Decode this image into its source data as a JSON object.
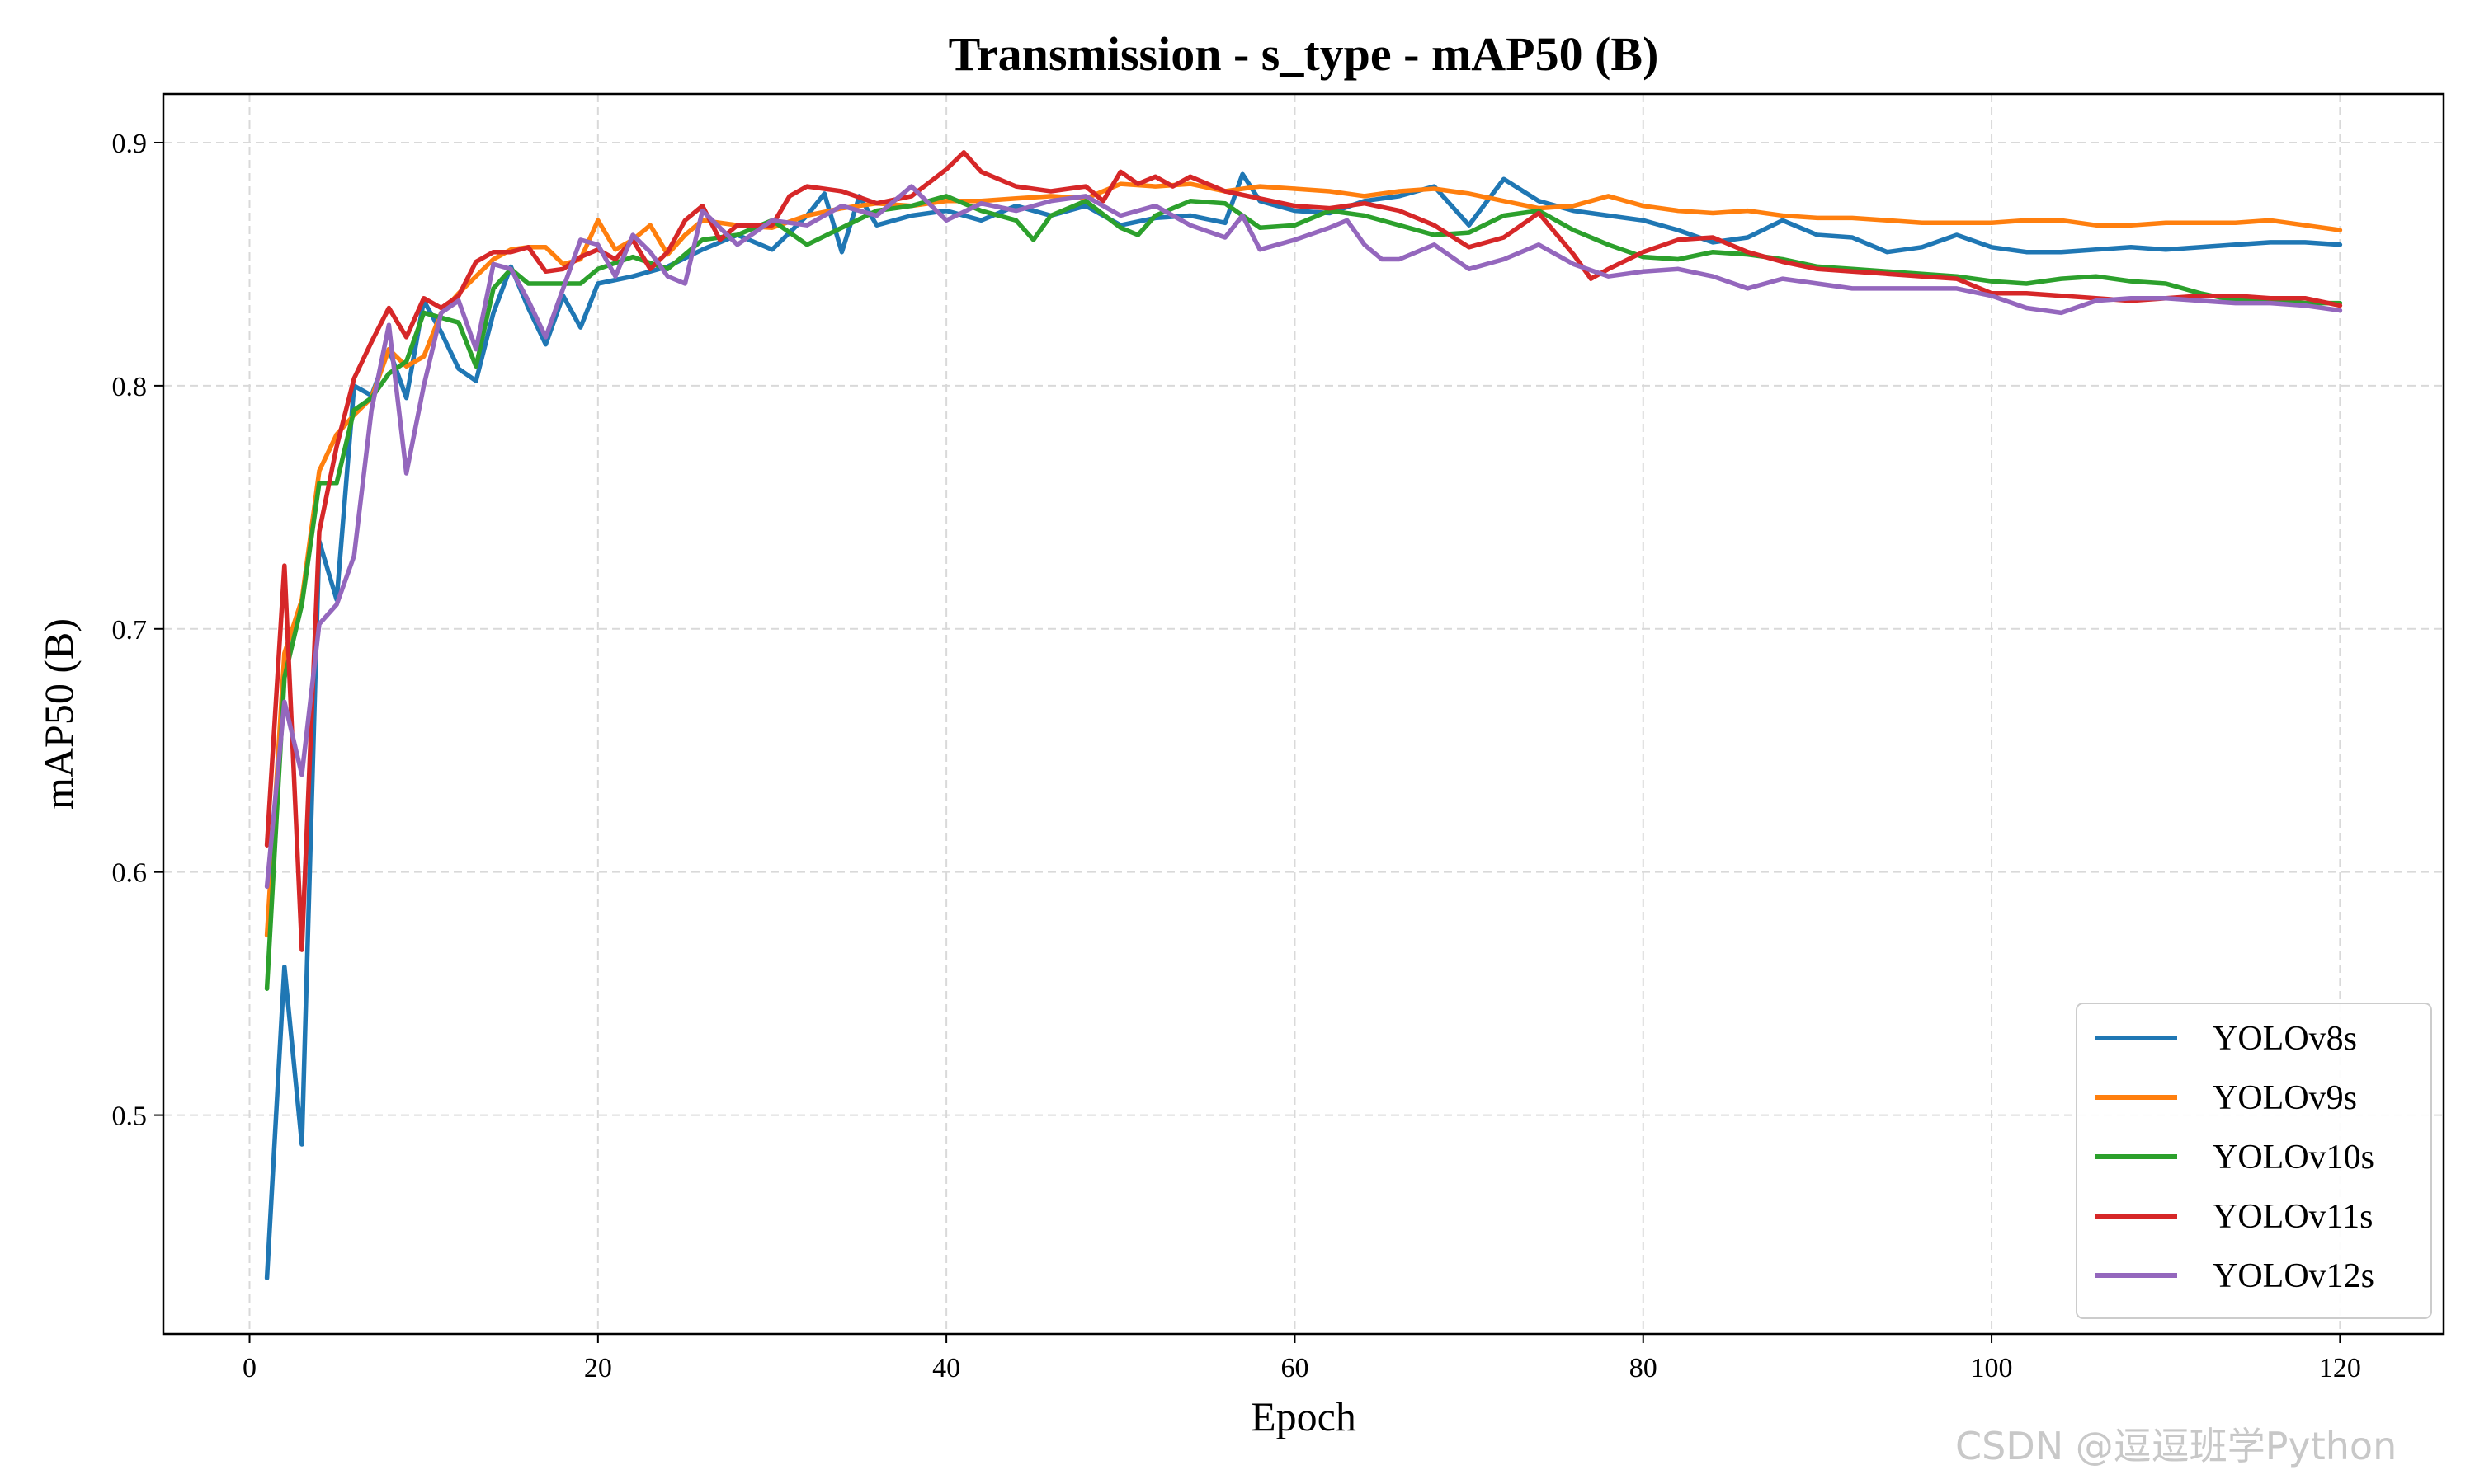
{
  "watermark": "CSDN @逗逗班学Python",
  "chart_data": {
    "type": "line",
    "title": "Transmission - s_type - mAP50 (B)",
    "xlabel": "Epoch",
    "ylabel": "mAP50 (B)",
    "xlim": [
      -4.95,
      125.95
    ],
    "ylim": [
      0.41,
      0.92
    ],
    "xticks": [
      0,
      20,
      40,
      60,
      80,
      100,
      120
    ],
    "yticks": [
      0.5,
      0.6,
      0.7,
      0.8,
      0.9
    ],
    "xtick_labels": [
      "0",
      "20",
      "40",
      "60",
      "80",
      "100",
      "120"
    ],
    "ytick_labels": [
      "0.5",
      "0.6",
      "0.7",
      "0.8",
      "0.9"
    ],
    "grid": true,
    "grid_style": "dashed",
    "legend_position": "lower-right",
    "series": [
      {
        "name": "YOLOv8s",
        "color": "#1f77b4",
        "x": [
          1,
          2,
          3,
          4,
          5,
          6,
          7,
          8,
          9,
          10,
          11,
          12,
          13,
          14,
          15,
          16,
          17,
          18,
          19,
          20,
          22,
          24,
          26,
          28,
          30,
          32,
          33,
          34,
          35,
          36,
          38,
          40,
          42,
          44,
          46,
          48,
          50,
          52,
          54,
          56,
          57,
          58,
          60,
          62,
          64,
          66,
          68,
          70,
          72,
          74,
          76,
          78,
          80,
          82,
          84,
          86,
          88,
          90,
          92,
          94,
          96,
          98,
          100,
          102,
          104,
          106,
          108,
          110,
          112,
          114,
          116,
          118,
          120
        ],
        "y": [
          0.433,
          0.561,
          0.488,
          0.736,
          0.712,
          0.8,
          0.796,
          0.815,
          0.795,
          0.835,
          0.822,
          0.807,
          0.802,
          0.83,
          0.849,
          0.832,
          0.817,
          0.837,
          0.824,
          0.842,
          0.845,
          0.849,
          0.856,
          0.862,
          0.856,
          0.87,
          0.879,
          0.855,
          0.878,
          0.866,
          0.87,
          0.872,
          0.868,
          0.874,
          0.87,
          0.874,
          0.866,
          0.869,
          0.87,
          0.867,
          0.887,
          0.876,
          0.872,
          0.871,
          0.876,
          0.878,
          0.882,
          0.866,
          0.885,
          0.876,
          0.872,
          0.87,
          0.868,
          0.864,
          0.859,
          0.861,
          0.868,
          0.862,
          0.861,
          0.855,
          0.857,
          0.862,
          0.857,
          0.855,
          0.855,
          0.856,
          0.857,
          0.856,
          0.857,
          0.858,
          0.859,
          0.859,
          0.858
        ]
      },
      {
        "name": "YOLOv9s",
        "color": "#ff7f0e",
        "x": [
          1,
          2,
          3,
          4,
          5,
          6,
          7,
          8,
          9,
          10,
          11,
          12,
          13,
          14,
          15,
          16,
          17,
          18,
          19,
          20,
          21,
          22,
          23,
          24,
          25,
          26,
          28,
          30,
          32,
          34,
          36,
          38,
          40,
          42,
          44,
          46,
          48,
          50,
          52,
          54,
          56,
          58,
          60,
          62,
          64,
          66,
          68,
          70,
          72,
          74,
          76,
          78,
          80,
          82,
          84,
          86,
          88,
          90,
          92,
          94,
          96,
          98,
          100,
          102,
          104,
          106,
          108,
          110,
          112,
          114,
          116,
          118,
          120
        ],
        "y": [
          0.574,
          0.69,
          0.712,
          0.765,
          0.78,
          0.788,
          0.795,
          0.815,
          0.808,
          0.812,
          0.83,
          0.838,
          0.845,
          0.852,
          0.856,
          0.857,
          0.857,
          0.85,
          0.852,
          0.868,
          0.856,
          0.86,
          0.866,
          0.854,
          0.862,
          0.868,
          0.866,
          0.865,
          0.87,
          0.873,
          0.875,
          0.874,
          0.876,
          0.876,
          0.877,
          0.878,
          0.877,
          0.883,
          0.882,
          0.883,
          0.88,
          0.882,
          0.881,
          0.88,
          0.878,
          0.88,
          0.881,
          0.879,
          0.876,
          0.873,
          0.874,
          0.878,
          0.874,
          0.872,
          0.871,
          0.872,
          0.87,
          0.869,
          0.869,
          0.868,
          0.867,
          0.867,
          0.867,
          0.868,
          0.868,
          0.866,
          0.866,
          0.867,
          0.867,
          0.867,
          0.868,
          0.866,
          0.864
        ]
      },
      {
        "name": "YOLOv10s",
        "color": "#2ca02c",
        "x": [
          1,
          2,
          3,
          4,
          5,
          6,
          7,
          8,
          9,
          10,
          11,
          12,
          13,
          14,
          15,
          16,
          17,
          18,
          19,
          20,
          22,
          24,
          26,
          28,
          30,
          32,
          34,
          36,
          38,
          40,
          42,
          44,
          45,
          46,
          48,
          50,
          51,
          52,
          54,
          56,
          58,
          60,
          62,
          64,
          66,
          68,
          70,
          72,
          74,
          76,
          78,
          80,
          82,
          84,
          86,
          88,
          90,
          92,
          94,
          96,
          98,
          100,
          102,
          104,
          106,
          108,
          110,
          112,
          114,
          116,
          118,
          120
        ],
        "y": [
          0.552,
          0.68,
          0.71,
          0.76,
          0.76,
          0.79,
          0.795,
          0.805,
          0.81,
          0.83,
          0.828,
          0.826,
          0.808,
          0.84,
          0.848,
          0.842,
          0.842,
          0.842,
          0.842,
          0.848,
          0.853,
          0.848,
          0.86,
          0.862,
          0.868,
          0.858,
          0.865,
          0.872,
          0.874,
          0.878,
          0.872,
          0.868,
          0.86,
          0.87,
          0.876,
          0.865,
          0.862,
          0.87,
          0.876,
          0.875,
          0.865,
          0.866,
          0.872,
          0.87,
          0.866,
          0.862,
          0.863,
          0.87,
          0.872,
          0.864,
          0.858,
          0.853,
          0.852,
          0.855,
          0.854,
          0.852,
          0.849,
          0.848,
          0.847,
          0.846,
          0.845,
          0.843,
          0.842,
          0.844,
          0.845,
          0.843,
          0.842,
          0.838,
          0.835,
          0.835,
          0.834,
          0.834
        ]
      },
      {
        "name": "YOLOv11s",
        "color": "#d62728",
        "x": [
          1,
          2,
          3,
          4,
          5,
          6,
          7,
          8,
          9,
          10,
          11,
          12,
          13,
          14,
          15,
          16,
          17,
          18,
          19,
          20,
          21,
          22,
          23,
          24,
          25,
          26,
          27,
          28,
          30,
          31,
          32,
          34,
          36,
          38,
          40,
          41,
          42,
          44,
          46,
          48,
          49,
          50,
          51,
          52,
          53,
          54,
          56,
          58,
          60,
          62,
          64,
          66,
          68,
          70,
          72,
          74,
          76,
          77,
          78,
          80,
          82,
          84,
          86,
          88,
          90,
          92,
          94,
          96,
          98,
          100,
          102,
          104,
          106,
          108,
          110,
          112,
          114,
          116,
          118,
          120
        ],
        "y": [
          0.611,
          0.726,
          0.568,
          0.74,
          0.775,
          0.803,
          0.818,
          0.832,
          0.82,
          0.836,
          0.832,
          0.837,
          0.851,
          0.855,
          0.855,
          0.857,
          0.847,
          0.848,
          0.853,
          0.856,
          0.852,
          0.86,
          0.848,
          0.855,
          0.868,
          0.874,
          0.86,
          0.866,
          0.866,
          0.878,
          0.882,
          0.88,
          0.875,
          0.878,
          0.889,
          0.896,
          0.888,
          0.882,
          0.88,
          0.882,
          0.876,
          0.888,
          0.883,
          0.886,
          0.882,
          0.886,
          0.88,
          0.877,
          0.874,
          0.873,
          0.875,
          0.872,
          0.866,
          0.857,
          0.861,
          0.871,
          0.854,
          0.844,
          0.848,
          0.855,
          0.86,
          0.861,
          0.855,
          0.851,
          0.848,
          0.847,
          0.846,
          0.845,
          0.844,
          0.838,
          0.838,
          0.837,
          0.836,
          0.835,
          0.836,
          0.837,
          0.837,
          0.836,
          0.836,
          0.833
        ]
      },
      {
        "name": "YOLOv12s",
        "color": "#9467bd",
        "x": [
          1,
          2,
          3,
          4,
          5,
          6,
          7,
          8,
          9,
          10,
          11,
          12,
          13,
          14,
          15,
          16,
          17,
          18,
          19,
          20,
          21,
          22,
          23,
          24,
          25,
          26,
          28,
          30,
          32,
          34,
          36,
          38,
          40,
          42,
          44,
          46,
          48,
          50,
          52,
          54,
          56,
          57,
          58,
          60,
          62,
          63,
          64,
          65,
          66,
          68,
          70,
          72,
          74,
          76,
          78,
          80,
          82,
          84,
          86,
          88,
          90,
          92,
          94,
          96,
          98,
          100,
          102,
          104,
          106,
          108,
          110,
          112,
          114,
          116,
          118,
          120
        ],
        "y": [
          0.594,
          0.67,
          0.64,
          0.702,
          0.71,
          0.73,
          0.79,
          0.825,
          0.764,
          0.8,
          0.83,
          0.835,
          0.815,
          0.85,
          0.848,
          0.835,
          0.82,
          0.84,
          0.86,
          0.858,
          0.845,
          0.862,
          0.855,
          0.845,
          0.842,
          0.872,
          0.858,
          0.868,
          0.866,
          0.874,
          0.87,
          0.882,
          0.868,
          0.875,
          0.872,
          0.876,
          0.878,
          0.87,
          0.874,
          0.866,
          0.861,
          0.87,
          0.856,
          0.86,
          0.865,
          0.868,
          0.858,
          0.852,
          0.852,
          0.858,
          0.848,
          0.852,
          0.858,
          0.85,
          0.845,
          0.847,
          0.848,
          0.845,
          0.84,
          0.844,
          0.842,
          0.84,
          0.84,
          0.84,
          0.84,
          0.837,
          0.832,
          0.83,
          0.835,
          0.836,
          0.836,
          0.835,
          0.834,
          0.834,
          0.833,
          0.831
        ]
      }
    ]
  }
}
